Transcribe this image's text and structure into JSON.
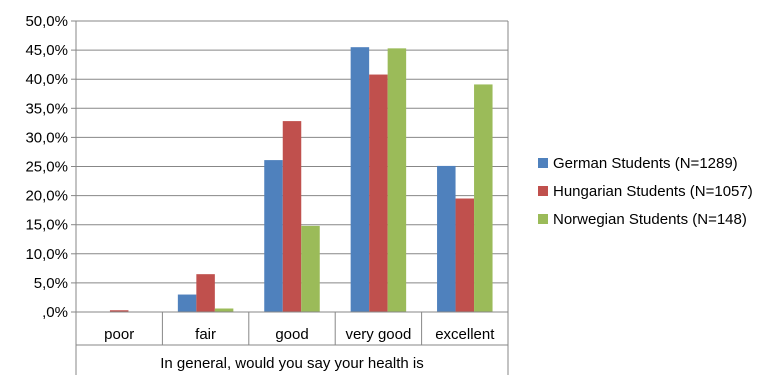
{
  "chart_data": {
    "type": "bar",
    "title": "",
    "xlabel": "In general, would you say your health is",
    "ylabel": "",
    "categories": [
      "poor",
      "fair",
      "good",
      "very good",
      "excellent"
    ],
    "series": [
      {
        "name": "German Students (N=1289)",
        "color": "#4F81BD",
        "values": [
          0.0,
          3.0,
          26.1,
          45.5,
          25.1
        ]
      },
      {
        "name": "Hungarian Students (N=1057)",
        "color": "#C0504D",
        "values": [
          0.3,
          6.5,
          32.8,
          40.8,
          19.5
        ]
      },
      {
        "name": "Norwegian Students (N=148)",
        "color": "#9BBB59",
        "values": [
          0.0,
          0.6,
          14.8,
          45.3,
          39.1
        ]
      }
    ],
    "ylim": [
      0,
      50
    ],
    "yticks": [
      "50,0%",
      "45,0%",
      "40,0%",
      "35,0%",
      "30,0%",
      "25,0%",
      "20,0%",
      "15,0%",
      "10,0%",
      "5,0%",
      ",0%"
    ],
    "grid": true,
    "legend": "right"
  }
}
